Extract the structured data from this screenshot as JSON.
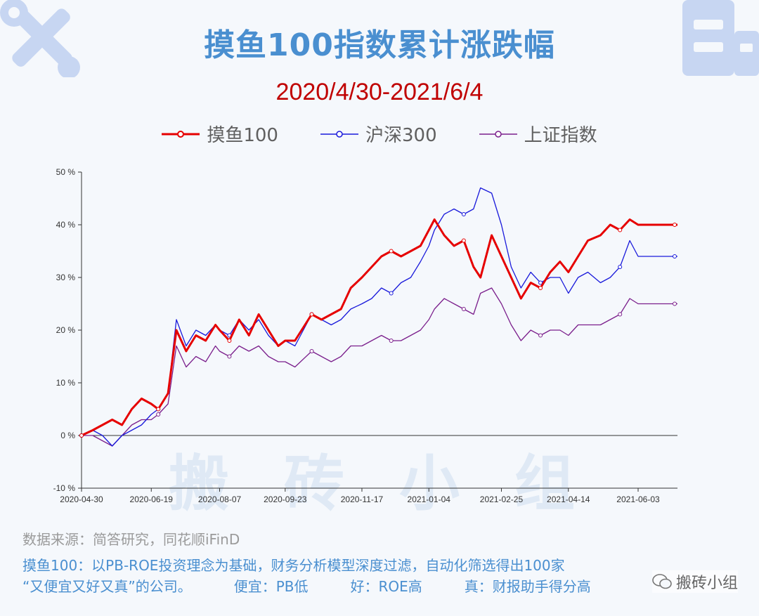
{
  "header": {
    "title": "摸鱼100指数累计涨跌幅",
    "subtitle": "2020/4/30-2021/6/4"
  },
  "legend": [
    {
      "label": "摸鱼100",
      "color": "#e60000"
    },
    {
      "label": "沪深300",
      "color": "#1a1adb"
    },
    {
      "label": "上证指数",
      "color": "#7b1f8c"
    }
  ],
  "watermark": "搬砖小组",
  "footer": {
    "source": "数据来源：简答研究，同花顺iFinD",
    "desc_line1": "摸鱼100：以PB-ROE投资理念为基础，财务分析模型深度过滤，自动化筛选得出100家",
    "desc_line2a": "“又便宜又好又真”的公司。",
    "desc_line2b": "便宜：PB低",
    "desc_line2c": "好：ROE高",
    "desc_line2d": "真：财报助手得分高",
    "wechat": "搬砖小组"
  },
  "icons": {
    "top_left": "tools-icon",
    "top_right": "building-icon"
  },
  "chart_data": {
    "type": "line",
    "title": "摸鱼100指数累计涨跌幅",
    "subtitle": "2020/4/30-2021/6/4",
    "x_tick_labels": [
      "2020-04-30",
      "2020-06-19",
      "2020-08-07",
      "2020-09-23",
      "2020-11-17",
      "2021-01-04",
      "2021-02-25",
      "2021-04-14",
      "2021-06-03"
    ],
    "y_tick_labels": [
      "-10 %",
      "0 %",
      "10 %",
      "20 %",
      "30 %",
      "40 %",
      "50 %"
    ],
    "ylim": [
      -10,
      50
    ],
    "legend_position": "top-center",
    "grid": false,
    "series": [
      {
        "name": "摸鱼100",
        "color": "#e60000",
        "points": [
          [
            "2020-04-30",
            0
          ],
          [
            "2020-05-08",
            1
          ],
          [
            "2020-05-15",
            2
          ],
          [
            "2020-05-22",
            3
          ],
          [
            "2020-05-29",
            2
          ],
          [
            "2020-06-05",
            5
          ],
          [
            "2020-06-12",
            7
          ],
          [
            "2020-06-19",
            6
          ],
          [
            "2020-06-24",
            5
          ],
          [
            "2020-07-01",
            8
          ],
          [
            "2020-07-07",
            20
          ],
          [
            "2020-07-14",
            16
          ],
          [
            "2020-07-21",
            19
          ],
          [
            "2020-07-28",
            18
          ],
          [
            "2020-08-04",
            21
          ],
          [
            "2020-08-07",
            20
          ],
          [
            "2020-08-14",
            18
          ],
          [
            "2020-08-21",
            22
          ],
          [
            "2020-08-28",
            19
          ],
          [
            "2020-09-04",
            23
          ],
          [
            "2020-09-11",
            20
          ],
          [
            "2020-09-18",
            17
          ],
          [
            "2020-09-23",
            18
          ],
          [
            "2020-09-30",
            18
          ],
          [
            "2020-10-12",
            23
          ],
          [
            "2020-10-19",
            22
          ],
          [
            "2020-10-26",
            23
          ],
          [
            "2020-11-02",
            24
          ],
          [
            "2020-11-09",
            28
          ],
          [
            "2020-11-17",
            30
          ],
          [
            "2020-11-24",
            32
          ],
          [
            "2020-12-01",
            34
          ],
          [
            "2020-12-08",
            35
          ],
          [
            "2020-12-15",
            34
          ],
          [
            "2020-12-22",
            35
          ],
          [
            "2020-12-29",
            36
          ],
          [
            "2021-01-04",
            39
          ],
          [
            "2021-01-08",
            41
          ],
          [
            "2021-01-15",
            38
          ],
          [
            "2021-01-22",
            36
          ],
          [
            "2021-01-29",
            37
          ],
          [
            "2021-02-05",
            32
          ],
          [
            "2021-02-10",
            30
          ],
          [
            "2021-02-18",
            38
          ],
          [
            "2021-02-25",
            34
          ],
          [
            "2021-03-04",
            30
          ],
          [
            "2021-03-11",
            26
          ],
          [
            "2021-03-18",
            29
          ],
          [
            "2021-03-25",
            28
          ],
          [
            "2021-04-01",
            31
          ],
          [
            "2021-04-08",
            33
          ],
          [
            "2021-04-14",
            31
          ],
          [
            "2021-04-21",
            34
          ],
          [
            "2021-04-28",
            37
          ],
          [
            "2021-05-07",
            38
          ],
          [
            "2021-05-14",
            40
          ],
          [
            "2021-05-21",
            39
          ],
          [
            "2021-05-28",
            41
          ],
          [
            "2021-06-03",
            40
          ]
        ]
      },
      {
        "name": "沪深300",
        "color": "#1a1adb",
        "points": [
          [
            "2020-04-30",
            0
          ],
          [
            "2020-05-08",
            1
          ],
          [
            "2020-05-15",
            0
          ],
          [
            "2020-05-22",
            -2
          ],
          [
            "2020-05-29",
            0
          ],
          [
            "2020-06-05",
            1
          ],
          [
            "2020-06-12",
            2
          ],
          [
            "2020-06-19",
            4
          ],
          [
            "2020-06-24",
            5
          ],
          [
            "2020-07-01",
            8
          ],
          [
            "2020-07-07",
            22
          ],
          [
            "2020-07-14",
            17
          ],
          [
            "2020-07-21",
            20
          ],
          [
            "2020-07-28",
            19
          ],
          [
            "2020-08-04",
            21
          ],
          [
            "2020-08-07",
            20
          ],
          [
            "2020-08-14",
            19
          ],
          [
            "2020-08-21",
            22
          ],
          [
            "2020-08-28",
            20
          ],
          [
            "2020-09-04",
            22
          ],
          [
            "2020-09-11",
            19
          ],
          [
            "2020-09-18",
            17
          ],
          [
            "2020-09-23",
            18
          ],
          [
            "2020-09-30",
            17
          ],
          [
            "2020-10-12",
            23
          ],
          [
            "2020-10-19",
            22
          ],
          [
            "2020-10-26",
            21
          ],
          [
            "2020-11-02",
            22
          ],
          [
            "2020-11-09",
            24
          ],
          [
            "2020-11-17",
            25
          ],
          [
            "2020-11-24",
            26
          ],
          [
            "2020-12-01",
            28
          ],
          [
            "2020-12-08",
            27
          ],
          [
            "2020-12-15",
            29
          ],
          [
            "2020-12-22",
            30
          ],
          [
            "2020-12-29",
            33
          ],
          [
            "2021-01-04",
            36
          ],
          [
            "2021-01-08",
            39
          ],
          [
            "2021-01-15",
            42
          ],
          [
            "2021-01-22",
            43
          ],
          [
            "2021-01-29",
            42
          ],
          [
            "2021-02-05",
            43
          ],
          [
            "2021-02-10",
            47
          ],
          [
            "2021-02-18",
            46
          ],
          [
            "2021-02-25",
            40
          ],
          [
            "2021-03-04",
            32
          ],
          [
            "2021-03-11",
            28
          ],
          [
            "2021-03-18",
            31
          ],
          [
            "2021-03-25",
            29
          ],
          [
            "2021-04-01",
            30
          ],
          [
            "2021-04-08",
            30
          ],
          [
            "2021-04-14",
            27
          ],
          [
            "2021-04-21",
            30
          ],
          [
            "2021-04-28",
            31
          ],
          [
            "2021-05-07",
            29
          ],
          [
            "2021-05-14",
            30
          ],
          [
            "2021-05-21",
            32
          ],
          [
            "2021-05-28",
            37
          ],
          [
            "2021-06-03",
            34
          ]
        ]
      },
      {
        "name": "上证指数",
        "color": "#7b1f8c",
        "points": [
          [
            "2020-04-30",
            0
          ],
          [
            "2020-05-08",
            0
          ],
          [
            "2020-05-15",
            -1
          ],
          [
            "2020-05-22",
            -2
          ],
          [
            "2020-05-29",
            0
          ],
          [
            "2020-06-05",
            2
          ],
          [
            "2020-06-12",
            3
          ],
          [
            "2020-06-19",
            3
          ],
          [
            "2020-06-24",
            4
          ],
          [
            "2020-07-01",
            6
          ],
          [
            "2020-07-07",
            17
          ],
          [
            "2020-07-14",
            13
          ],
          [
            "2020-07-21",
            15
          ],
          [
            "2020-07-28",
            14
          ],
          [
            "2020-08-04",
            17
          ],
          [
            "2020-08-07",
            16
          ],
          [
            "2020-08-14",
            15
          ],
          [
            "2020-08-21",
            17
          ],
          [
            "2020-08-28",
            16
          ],
          [
            "2020-09-04",
            17
          ],
          [
            "2020-09-11",
            15
          ],
          [
            "2020-09-18",
            14
          ],
          [
            "2020-09-23",
            14
          ],
          [
            "2020-09-30",
            13
          ],
          [
            "2020-10-12",
            16
          ],
          [
            "2020-10-19",
            15
          ],
          [
            "2020-10-26",
            14
          ],
          [
            "2020-11-02",
            15
          ],
          [
            "2020-11-09",
            17
          ],
          [
            "2020-11-17",
            17
          ],
          [
            "2020-11-24",
            18
          ],
          [
            "2020-12-01",
            19
          ],
          [
            "2020-12-08",
            18
          ],
          [
            "2020-12-15",
            18
          ],
          [
            "2020-12-22",
            19
          ],
          [
            "2020-12-29",
            20
          ],
          [
            "2021-01-04",
            22
          ],
          [
            "2021-01-08",
            24
          ],
          [
            "2021-01-15",
            26
          ],
          [
            "2021-01-22",
            25
          ],
          [
            "2021-01-29",
            24
          ],
          [
            "2021-02-05",
            23
          ],
          [
            "2021-02-10",
            27
          ],
          [
            "2021-02-18",
            28
          ],
          [
            "2021-02-25",
            25
          ],
          [
            "2021-03-04",
            21
          ],
          [
            "2021-03-11",
            18
          ],
          [
            "2021-03-18",
            20
          ],
          [
            "2021-03-25",
            19
          ],
          [
            "2021-04-01",
            20
          ],
          [
            "2021-04-08",
            20
          ],
          [
            "2021-04-14",
            19
          ],
          [
            "2021-04-21",
            21
          ],
          [
            "2021-04-28",
            21
          ],
          [
            "2021-05-07",
            21
          ],
          [
            "2021-05-14",
            22
          ],
          [
            "2021-05-21",
            23
          ],
          [
            "2021-05-28",
            26
          ],
          [
            "2021-06-03",
            25
          ]
        ]
      }
    ]
  }
}
